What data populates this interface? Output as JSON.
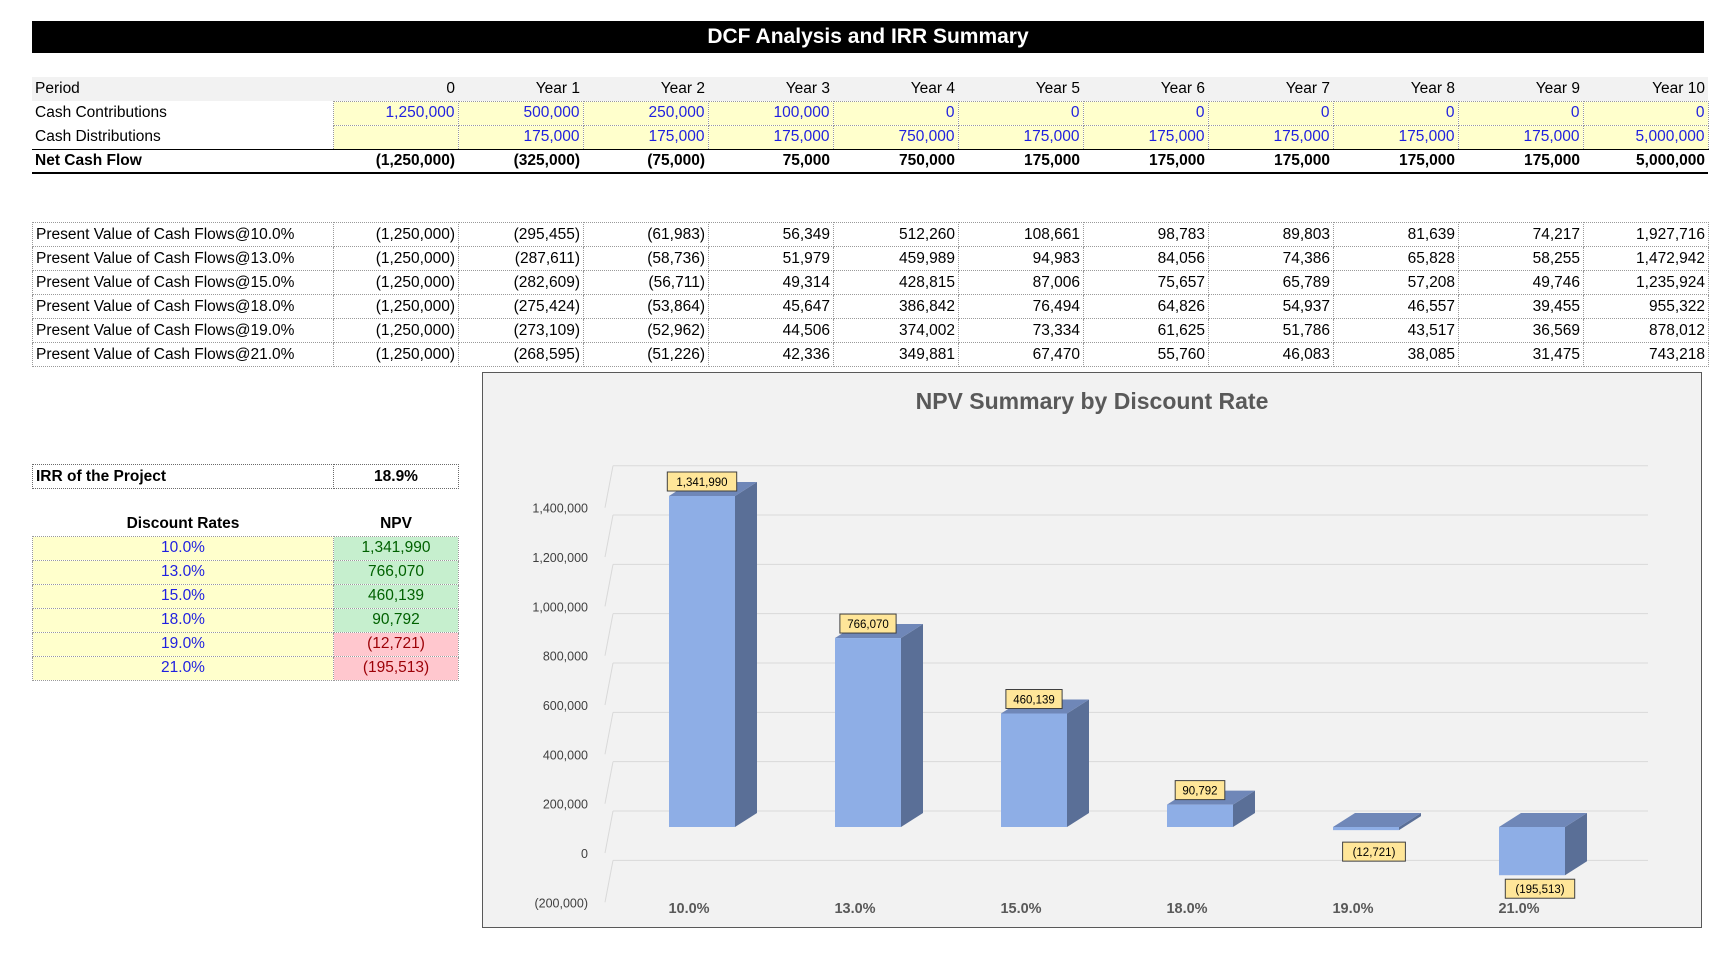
{
  "title": "DCF Analysis and IRR Summary",
  "cashflow": {
    "headers": [
      "Period",
      "0",
      "Year 1",
      "Year 2",
      "Year 3",
      "Year 4",
      "Year 5",
      "Year 6",
      "Year 7",
      "Year 8",
      "Year 9",
      "Year 10"
    ],
    "contributions": {
      "label": "Cash Contributions",
      "values": [
        "1,250,000",
        "500,000",
        "250,000",
        "100,000",
        "0",
        "0",
        "0",
        "0",
        "0",
        "0",
        "0"
      ]
    },
    "distributions": {
      "label": "Cash Distributions",
      "values": [
        "",
        "175,000",
        "175,000",
        "175,000",
        "750,000",
        "175,000",
        "175,000",
        "175,000",
        "175,000",
        "175,000",
        "5,000,000"
      ]
    },
    "net": {
      "label": "Net Cash Flow",
      "values": [
        "(1,250,000)",
        "(325,000)",
        "(75,000)",
        "75,000",
        "750,000",
        "175,000",
        "175,000",
        "175,000",
        "175,000",
        "175,000",
        "5,000,000"
      ]
    }
  },
  "pv_rows": [
    {
      "label": "Present Value of Cash Flows@10.0%",
      "values": [
        "(1,250,000)",
        "(295,455)",
        "(61,983)",
        "56,349",
        "512,260",
        "108,661",
        "98,783",
        "89,803",
        "81,639",
        "74,217",
        "1,927,716"
      ]
    },
    {
      "label": "Present Value of Cash Flows@13.0%",
      "values": [
        "(1,250,000)",
        "(287,611)",
        "(58,736)",
        "51,979",
        "459,989",
        "94,983",
        "84,056",
        "74,386",
        "65,828",
        "58,255",
        "1,472,942"
      ]
    },
    {
      "label": "Present Value of Cash Flows@15.0%",
      "values": [
        "(1,250,000)",
        "(282,609)",
        "(56,711)",
        "49,314",
        "428,815",
        "87,006",
        "75,657",
        "65,789",
        "57,208",
        "49,746",
        "1,235,924"
      ]
    },
    {
      "label": "Present Value of Cash Flows@18.0%",
      "values": [
        "(1,250,000)",
        "(275,424)",
        "(53,864)",
        "45,647",
        "386,842",
        "76,494",
        "64,826",
        "54,937",
        "46,557",
        "39,455",
        "955,322"
      ]
    },
    {
      "label": "Present Value of Cash Flows@19.0%",
      "values": [
        "(1,250,000)",
        "(273,109)",
        "(52,962)",
        "44,506",
        "374,002",
        "73,334",
        "61,625",
        "51,786",
        "43,517",
        "36,569",
        "878,012"
      ]
    },
    {
      "label": "Present Value of Cash Flows@21.0%",
      "values": [
        "(1,250,000)",
        "(268,595)",
        "(51,226)",
        "42,336",
        "349,881",
        "67,470",
        "55,760",
        "46,083",
        "38,085",
        "31,475",
        "743,218"
      ]
    }
  ],
  "irr": {
    "label": "IRR of the Project",
    "value": "18.9%"
  },
  "npv_table": {
    "headers": [
      "Discount Rates",
      "NPV"
    ],
    "rows": [
      {
        "rate": "10.0%",
        "npv": "1,341,990"
      },
      {
        "rate": "13.0%",
        "npv": "766,070"
      },
      {
        "rate": "15.0%",
        "npv": "460,139"
      },
      {
        "rate": "18.0%",
        "npv": "90,792"
      },
      {
        "rate": "19.0%",
        "npv": "(12,721)"
      },
      {
        "rate": "21.0%",
        "npv": "(195,513)"
      }
    ]
  },
  "chart_data": {
    "type": "bar",
    "title": "NPV Summary by Discount Rate",
    "categories": [
      "10.0%",
      "13.0%",
      "15.0%",
      "18.0%",
      "19.0%",
      "21.0%"
    ],
    "values": [
      1341990,
      766070,
      460139,
      90792,
      -12721,
      -195513
    ],
    "data_labels": [
      "1,341,990",
      "766,070",
      "460,139",
      "90,792",
      "(12,721)",
      "(195,513)"
    ],
    "ylim": [
      -200000,
      1400000
    ],
    "yticks": [
      -200000,
      0,
      200000,
      400000,
      600000,
      800000,
      1000000,
      1200000,
      1400000
    ],
    "ytick_labels": [
      "(200,000)",
      "0",
      "200,000",
      "400,000",
      "600,000",
      "800,000",
      "1,000,000",
      "1,200,000",
      "1,400,000"
    ],
    "grid": true,
    "legend": "none",
    "colors": {
      "bar_front": "#8eaee6",
      "bar_side": "#5a6f97",
      "bar_top": "#6f87b8",
      "label_bg": "#ffe699",
      "plot_bg": "#f2f2f2"
    }
  }
}
